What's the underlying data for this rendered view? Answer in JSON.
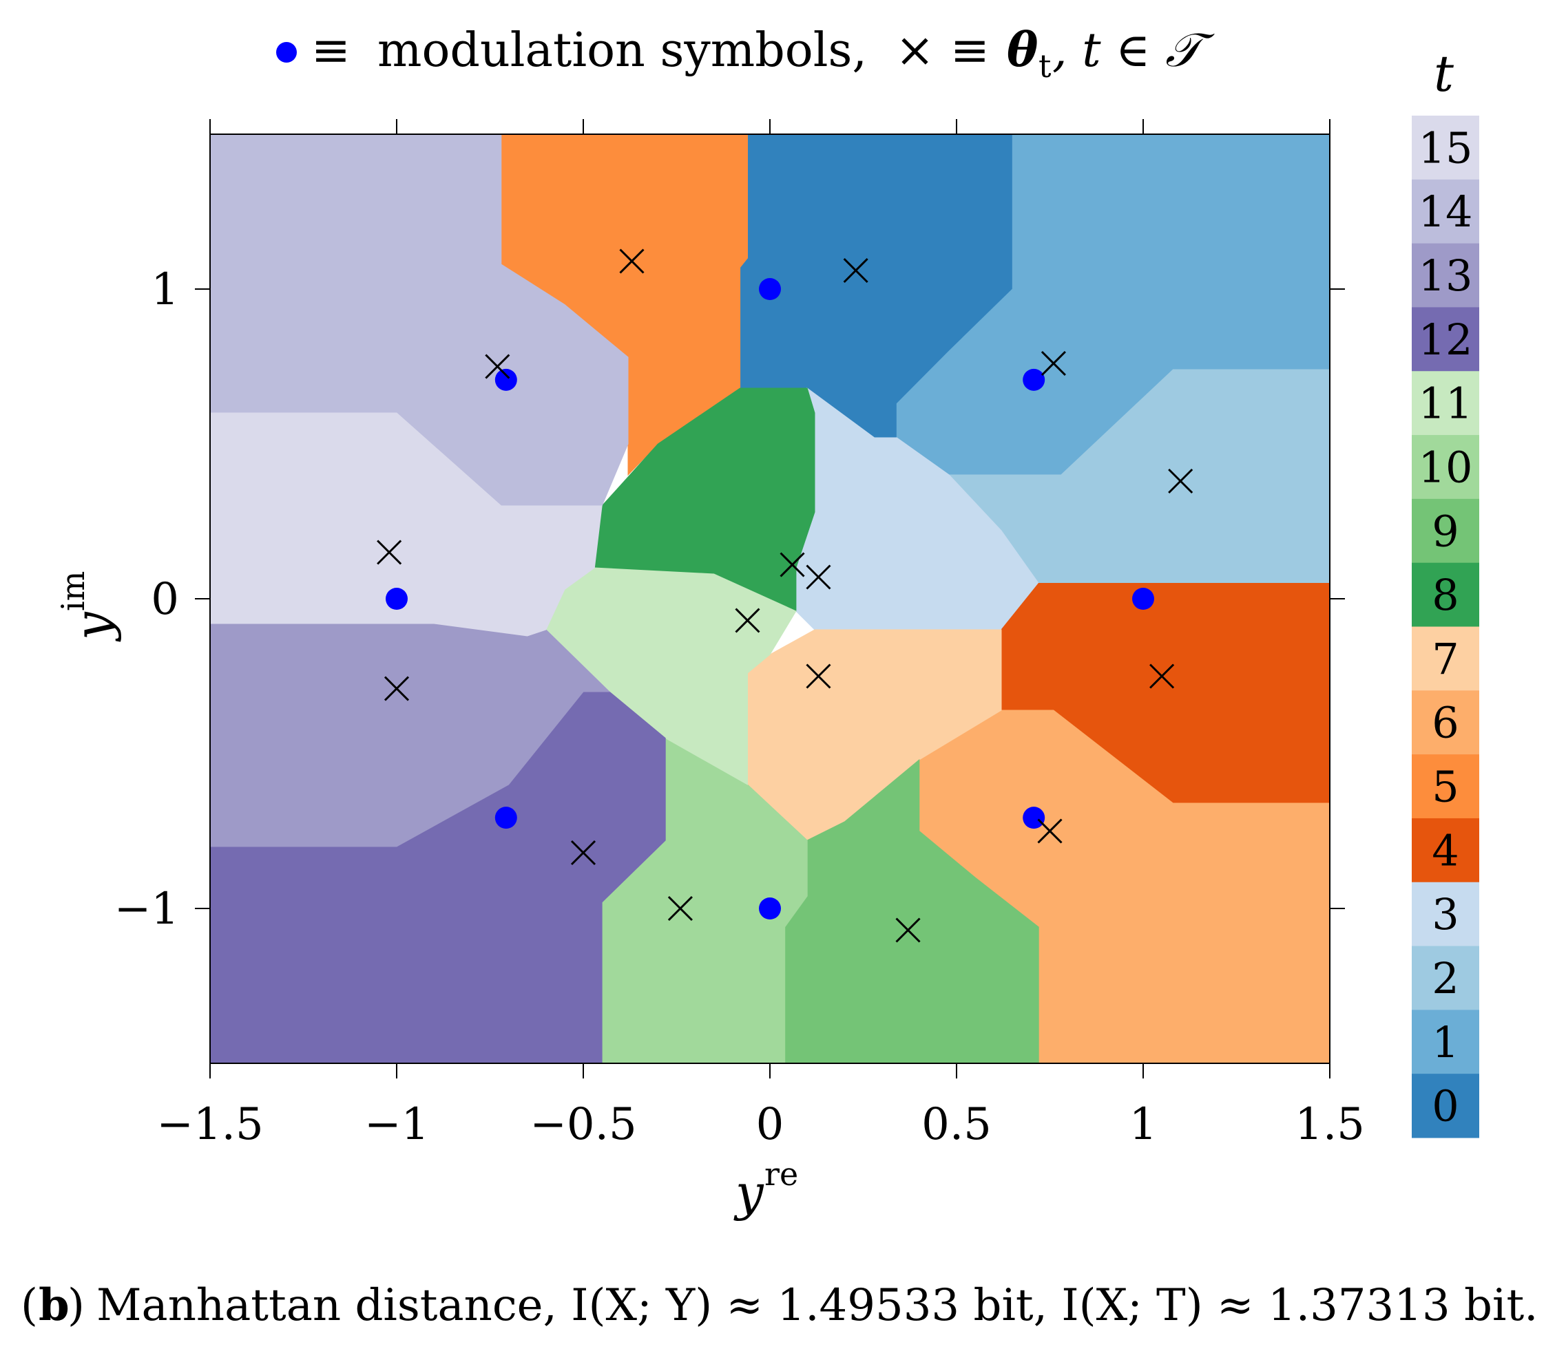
{
  "chart_data": {
    "type": "scatter",
    "title": {
      "legend_dot": "modulation symbols,",
      "legend_cross": "θ",
      "cross_sub": "t",
      "set_expr": ", t ∈ 𝒯",
      "equiv": "≡",
      "times": "×"
    },
    "xlabel": "y",
    "xlabel_sup": "re",
    "ylabel": "y",
    "ylabel_sup": "im",
    "xlim": [
      -1.5,
      1.5
    ],
    "ylim": [
      -1.5,
      1.5
    ],
    "xticks": [
      -1.5,
      -1,
      -0.5,
      0,
      0.5,
      1,
      1.5
    ],
    "xtick_labels": [
      "−1.5",
      "−1",
      "−0.5",
      "0",
      "0.5",
      "1",
      "1.5"
    ],
    "yticks": [
      1,
      0,
      -1
    ],
    "ytick_labels": [
      "1",
      "0",
      "−1"
    ],
    "colorbar": {
      "label": "t",
      "levels": [
        "15",
        "14",
        "13",
        "12",
        "11",
        "10",
        "9",
        "8",
        "7",
        "6",
        "5",
        "4",
        "3",
        "2",
        "1",
        "0"
      ],
      "colors": [
        "#dadaeb",
        "#bcbddc",
        "#9e9ac8",
        "#756bb1",
        "#c7e9c0",
        "#a1d99b",
        "#74c476",
        "#31a354",
        "#fdd0a2",
        "#fdae6b",
        "#fd8d3c",
        "#e6550d",
        "#c6dbef",
        "#9ecae1",
        "#6baed6",
        "#3182bd"
      ]
    },
    "regions": [
      {
        "t": 0,
        "color": "#3182bd",
        "polygon": [
          [
            -0.06,
            1.5
          ],
          [
            0.65,
            1.5
          ],
          [
            0.65,
            1.0
          ],
          [
            0.48,
            0.8
          ],
          [
            0.34,
            0.63
          ],
          [
            0.34,
            0.52
          ],
          [
            0.28,
            0.52
          ],
          [
            0.1,
            0.68
          ],
          [
            -0.08,
            0.68
          ],
          [
            -0.08,
            1.07
          ],
          [
            -0.06,
            1.1
          ]
        ]
      },
      {
        "t": 1,
        "color": "#6baed6",
        "polygon": [
          [
            0.65,
            1.5
          ],
          [
            1.5,
            1.5
          ],
          [
            1.5,
            0.74
          ],
          [
            1.08,
            0.74
          ],
          [
            0.78,
            0.4
          ],
          [
            0.48,
            0.4
          ],
          [
            0.34,
            0.52
          ],
          [
            0.34,
            0.63
          ],
          [
            0.48,
            0.8
          ],
          [
            0.65,
            1.0
          ]
        ]
      },
      {
        "t": 2,
        "color": "#9ecae1",
        "polygon": [
          [
            1.08,
            0.74
          ],
          [
            1.5,
            0.74
          ],
          [
            1.5,
            0.05
          ],
          [
            0.72,
            0.05
          ],
          [
            0.62,
            0.22
          ],
          [
            0.46,
            0.4
          ],
          [
            0.78,
            0.4
          ]
        ]
      },
      {
        "t": 3,
        "color": "#c6dbef",
        "polygon": [
          [
            0.1,
            0.68
          ],
          [
            0.28,
            0.52
          ],
          [
            0.34,
            0.52
          ],
          [
            0.48,
            0.4
          ],
          [
            0.62,
            0.22
          ],
          [
            0.72,
            0.05
          ],
          [
            0.62,
            -0.1
          ],
          [
            0.12,
            -0.1
          ],
          [
            0.07,
            -0.04
          ],
          [
            0.07,
            0.1
          ],
          [
            0.12,
            0.28
          ],
          [
            0.12,
            0.6
          ]
        ]
      },
      {
        "t": 4,
        "color": "#e6550d",
        "polygon": [
          [
            0.72,
            0.05
          ],
          [
            1.5,
            0.05
          ],
          [
            1.5,
            -0.66
          ],
          [
            1.08,
            -0.66
          ],
          [
            0.76,
            -0.36
          ],
          [
            0.59,
            -0.36
          ],
          [
            0.59,
            -0.1
          ],
          [
            0.62,
            -0.1
          ]
        ]
      },
      {
        "t": 5,
        "color": "#fd8d3c",
        "polygon": [
          [
            -0.72,
            1.5
          ],
          [
            -0.06,
            1.5
          ],
          [
            -0.06,
            1.1
          ],
          [
            -0.08,
            1.07
          ],
          [
            -0.08,
            0.68
          ],
          [
            -0.3,
            0.5
          ],
          [
            -0.38,
            0.4
          ],
          [
            -0.38,
            0.78
          ],
          [
            -0.55,
            0.95
          ],
          [
            -0.72,
            1.08
          ]
        ]
      },
      {
        "t": 6,
        "color": "#fdae6b",
        "polygon": [
          [
            0.76,
            -0.36
          ],
          [
            1.08,
            -0.66
          ],
          [
            1.5,
            -0.66
          ],
          [
            1.5,
            -1.5
          ],
          [
            0.72,
            -1.5
          ],
          [
            0.72,
            -1.06
          ],
          [
            0.55,
            -0.9
          ],
          [
            0.4,
            -0.75
          ],
          [
            0.4,
            -0.52
          ],
          [
            0.62,
            -0.36
          ]
        ]
      },
      {
        "t": 7,
        "color": "#fdd0a2",
        "polygon": [
          [
            0.12,
            -0.1
          ],
          [
            0.62,
            -0.1
          ],
          [
            0.62,
            -0.36
          ],
          [
            0.4,
            -0.52
          ],
          [
            0.2,
            -0.72
          ],
          [
            0.1,
            -0.78
          ],
          [
            -0.06,
            -0.6
          ],
          [
            -0.06,
            -0.24
          ],
          [
            0.0,
            -0.18
          ]
        ]
      },
      {
        "t": 8,
        "color": "#31a354",
        "polygon": [
          [
            -0.08,
            0.68
          ],
          [
            0.1,
            0.68
          ],
          [
            0.12,
            0.6
          ],
          [
            0.12,
            0.28
          ],
          [
            0.07,
            0.1
          ],
          [
            0.07,
            -0.04
          ],
          [
            -0.15,
            0.08
          ],
          [
            -0.47,
            0.1
          ],
          [
            -0.45,
            0.3
          ],
          [
            -0.3,
            0.5
          ]
        ]
      },
      {
        "t": 9,
        "color": "#74c476",
        "polygon": [
          [
            0.1,
            -0.78
          ],
          [
            0.2,
            -0.72
          ],
          [
            0.4,
            -0.52
          ],
          [
            0.4,
            -0.75
          ],
          [
            0.55,
            -0.9
          ],
          [
            0.72,
            -1.06
          ],
          [
            0.72,
            -1.5
          ],
          [
            0.04,
            -1.5
          ],
          [
            0.04,
            -1.06
          ],
          [
            0.1,
            -0.96
          ]
        ]
      },
      {
        "t": 10,
        "color": "#a1d99b",
        "polygon": [
          [
            -0.28,
            -0.45
          ],
          [
            -0.06,
            -0.6
          ],
          [
            0.1,
            -0.78
          ],
          [
            0.1,
            -0.96
          ],
          [
            0.04,
            -1.06
          ],
          [
            0.04,
            -1.5
          ],
          [
            -0.45,
            -1.5
          ],
          [
            -0.45,
            -0.98
          ],
          [
            -0.28,
            -0.78
          ]
        ]
      },
      {
        "t": 11,
        "color": "#c7e9c0",
        "polygon": [
          [
            -0.47,
            0.1
          ],
          [
            -0.15,
            0.08
          ],
          [
            0.07,
            -0.04
          ],
          [
            0.0,
            -0.18
          ],
          [
            -0.06,
            -0.24
          ],
          [
            -0.06,
            -0.6
          ],
          [
            -0.28,
            -0.45
          ],
          [
            -0.43,
            -0.3
          ],
          [
            -0.6,
            -0.1
          ],
          [
            -0.55,
            0.03
          ]
        ]
      },
      {
        "t": 12,
        "color": "#756bb1",
        "polygon": [
          [
            -1.5,
            -0.8
          ],
          [
            -1.0,
            -0.8
          ],
          [
            -0.7,
            -0.6
          ],
          [
            -0.5,
            -0.3
          ],
          [
            -0.43,
            -0.3
          ],
          [
            -0.28,
            -0.45
          ],
          [
            -0.28,
            -0.78
          ],
          [
            -0.45,
            -0.98
          ],
          [
            -0.45,
            -1.5
          ],
          [
            -1.5,
            -1.5
          ]
        ]
      },
      {
        "t": 13,
        "color": "#9e9ac8",
        "polygon": [
          [
            -1.5,
            -0.08
          ],
          [
            -0.9,
            -0.08
          ],
          [
            -0.65,
            -0.12
          ],
          [
            -0.6,
            -0.1
          ],
          [
            -0.43,
            -0.3
          ],
          [
            -0.5,
            -0.3
          ],
          [
            -0.7,
            -0.6
          ],
          [
            -1.0,
            -0.8
          ],
          [
            -1.5,
            -0.8
          ]
        ]
      },
      {
        "t": 14,
        "color": "#bcbddc",
        "polygon": [
          [
            -1.5,
            1.5
          ],
          [
            -0.72,
            1.5
          ],
          [
            -0.72,
            1.08
          ],
          [
            -0.55,
            0.95
          ],
          [
            -0.38,
            0.78
          ],
          [
            -0.38,
            0.5
          ],
          [
            -0.45,
            0.3
          ],
          [
            -0.72,
            0.3
          ],
          [
            -1.0,
            0.6
          ],
          [
            -1.5,
            0.6
          ]
        ]
      },
      {
        "t": 15,
        "color": "#dadaeb",
        "polygon": [
          [
            -1.5,
            0.6
          ],
          [
            -1.0,
            0.6
          ],
          [
            -0.72,
            0.3
          ],
          [
            -0.45,
            0.3
          ],
          [
            -0.47,
            0.1
          ],
          [
            -0.55,
            0.03
          ],
          [
            -0.6,
            -0.1
          ],
          [
            -0.65,
            -0.12
          ],
          [
            -0.9,
            -0.08
          ],
          [
            -1.5,
            -0.08
          ]
        ]
      }
    ],
    "modulation_symbols": {
      "name": "modulation symbols",
      "color": "#0000ff",
      "x": [
        1,
        0.707,
        0,
        -0.707,
        -1,
        -0.707,
        0,
        0.707
      ],
      "y": [
        0,
        0.707,
        1,
        0.707,
        0,
        -0.707,
        -1,
        -0.707
      ]
    },
    "theta": {
      "name": "θ_t",
      "x": [
        -0.37,
        0.23,
        -0.73,
        0.76,
        1.1,
        -1.02,
        0.06,
        0.13,
        -0.06,
        0.13,
        1.05,
        -1.0,
        -0.5,
        0.75,
        -0.24,
        0.37
      ],
      "y": [
        1.09,
        1.06,
        0.75,
        0.76,
        0.38,
        0.15,
        0.11,
        0.07,
        -0.07,
        -0.25,
        -0.25,
        -0.29,
        -0.82,
        -0.75,
        -1.0,
        -1.07
      ]
    }
  },
  "caption": {
    "label": "b",
    "text": "Manhattan distance, I(X; Y) ≈ 1.49533 bit, I(X; T) ≈ 1.37313 bit."
  }
}
